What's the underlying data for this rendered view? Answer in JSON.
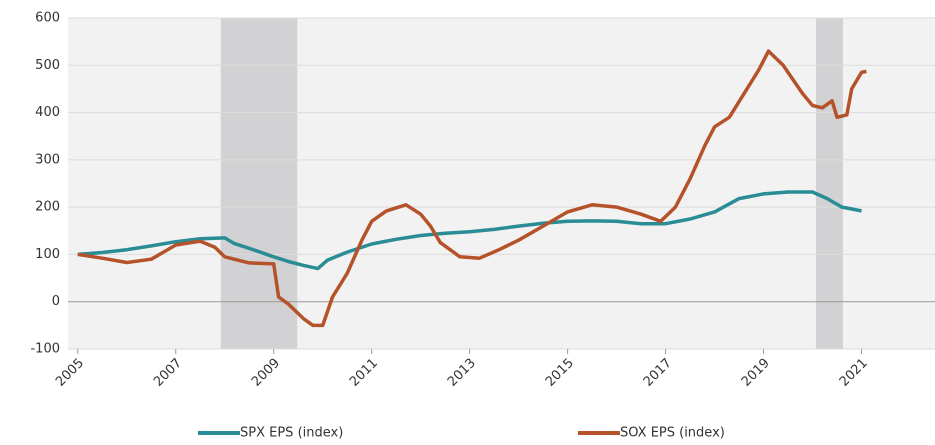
{
  "chart_data": {
    "type": "line",
    "xlim": [
      2004.8,
      2022.5
    ],
    "xticks": [
      2005,
      2007,
      2009,
      2011,
      2013,
      2015,
      2017,
      2019,
      2021
    ],
    "ylim": [
      -100,
      600
    ],
    "yticks": [
      -100,
      0,
      100,
      200,
      300,
      400,
      500,
      600
    ],
    "grid": true,
    "legend": "bottom",
    "shaded_regions": [
      [
        2007.92,
        2009.48
      ],
      [
        2020.07,
        2020.62
      ]
    ],
    "series": [
      {
        "name": "SPX EPS (index)",
        "color": "#2a8c95",
        "x": [
          2005,
          2005.5,
          2006,
          2006.5,
          2007,
          2007.5,
          2008,
          2008.2,
          2008.5,
          2009,
          2009.3,
          2009.6,
          2009.9,
          2010.1,
          2010.5,
          2011,
          2011.5,
          2012,
          2012.5,
          2013,
          2013.5,
          2014,
          2014.5,
          2015,
          2015.5,
          2016,
          2016.5,
          2017,
          2017.5,
          2018,
          2018.5,
          2019,
          2019.5,
          2020,
          2020.3,
          2020.6,
          2021
        ],
        "values": [
          100,
          104,
          110,
          118,
          127,
          133,
          135,
          123,
          113,
          95,
          85,
          77,
          70,
          88,
          105,
          122,
          132,
          140,
          145,
          148,
          153,
          160,
          166,
          170,
          171,
          170,
          165,
          165,
          175,
          190,
          218,
          228,
          232,
          232,
          218,
          200,
          192
        ]
      },
      {
        "name": "SOX EPS (index)",
        "color": "#b5522a",
        "x": [
          2005,
          2005.5,
          2006,
          2006.5,
          2007,
          2007.5,
          2007.8,
          2008,
          2008.5,
          2009,
          2009.1,
          2009.3,
          2009.6,
          2009.8,
          2010,
          2010.2,
          2010.5,
          2010.8,
          2011,
          2011.3,
          2011.7,
          2012,
          2012.2,
          2012.4,
          2012.8,
          2013.2,
          2013.6,
          2014,
          2014.5,
          2015,
          2015.5,
          2016,
          2016.5,
          2016.9,
          2017.2,
          2017.5,
          2017.8,
          2018,
          2018.3,
          2018.6,
          2018.9,
          2019.1,
          2019.4,
          2019.6,
          2019.8,
          2020,
          2020.2,
          2020.4,
          2020.5,
          2020.7,
          2020.8,
          2021,
          2021.1
        ],
        "values": [
          100,
          92,
          83,
          90,
          120,
          128,
          115,
          95,
          82,
          80,
          10,
          -5,
          -35,
          -50,
          -50,
          10,
          60,
          130,
          170,
          192,
          205,
          185,
          160,
          125,
          95,
          92,
          110,
          130,
          160,
          190,
          205,
          200,
          185,
          170,
          200,
          260,
          330,
          370,
          390,
          440,
          490,
          530,
          500,
          470,
          440,
          415,
          410,
          425,
          390,
          395,
          450,
          485,
          487
        ]
      }
    ]
  }
}
